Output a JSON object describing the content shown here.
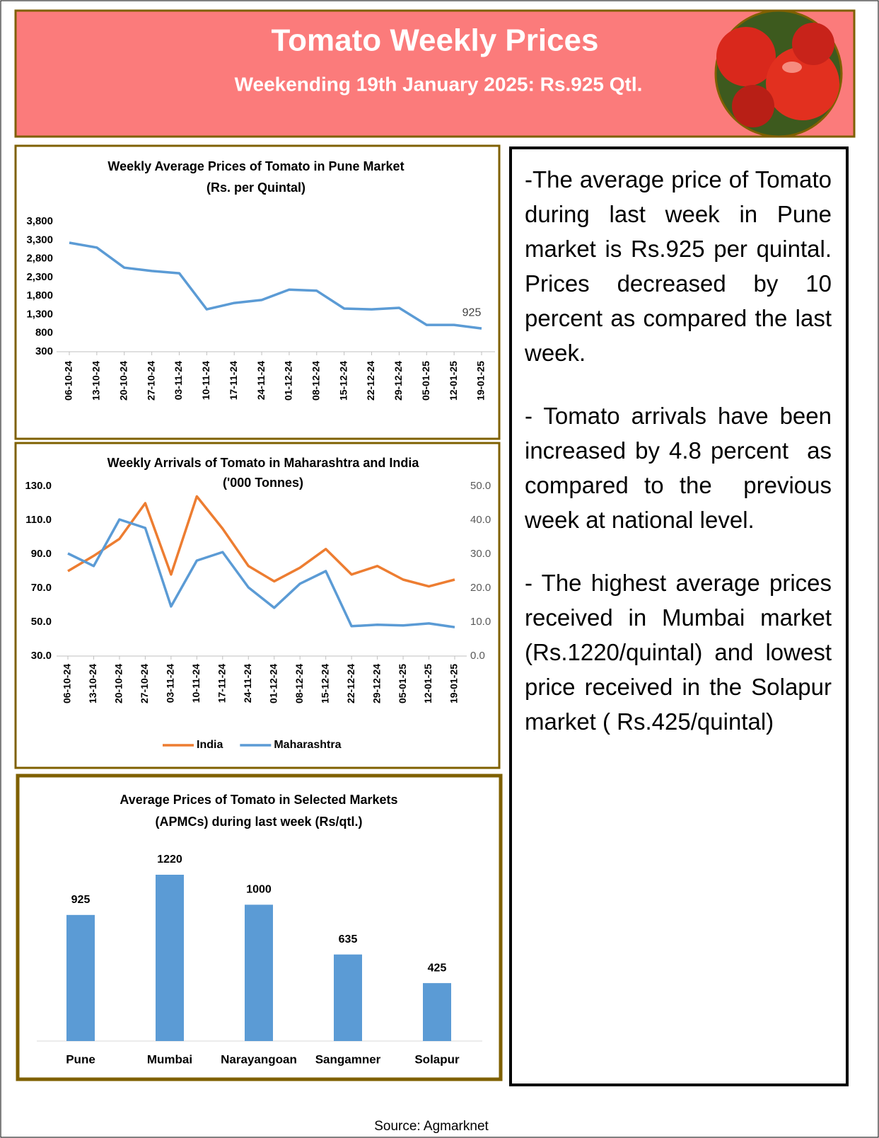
{
  "header": {
    "title": "Tomato Weekly Prices",
    "subtitle": "Weekending  19th January 2025: Rs.925 Qtl."
  },
  "chart_data": [
    {
      "type": "line",
      "title": "Weekly Average Prices of Tomato in Pune Market",
      "subtitle": "(Rs. per Quintal)",
      "categories": [
        "06-10-24",
        "13-10-24",
        "20-10-24",
        "27-10-24",
        "03-11-24",
        "10-11-24",
        "17-11-24",
        "24-11-24",
        "01-12-24",
        "08-12-24",
        "15-12-24",
        "22-12-24",
        "29-12-24",
        "05-01-25",
        "12-01-25",
        "19-01-25"
      ],
      "values": [
        3230,
        3100,
        2560,
        2470,
        2410,
        1440,
        1610,
        1690,
        1970,
        1940,
        1460,
        1440,
        1480,
        1020,
        1020,
        925
      ],
      "color": "#5b9bd5",
      "ylim": [
        300,
        3800
      ],
      "yticks": [
        300,
        800,
        {
          "value": 1300,
          "label": "1,300"
        },
        {
          "value": 1800,
          "label": "1,800"
        },
        {
          "value": 2300,
          "label": "2,300"
        },
        {
          "value": 2800,
          "label": "2,800"
        },
        {
          "value": 3300,
          "label": "3,300"
        },
        {
          "value": 3800,
          "label": "3,800"
        }
      ]
    },
    {
      "type": "line",
      "title": "Weekly Arrivals of Tomato in Maharashtra and India",
      "subtitle": "('000 Tonnes)",
      "categories": [
        "06-10-24",
        "13-10-24",
        "20-10-24",
        "27-10-24",
        "03-11-24",
        "10-11-24",
        "17-11-24",
        "24-11-24",
        "01-12-24",
        "08-12-24",
        "15-12-24",
        "22-12-24",
        "29-12-24",
        "05-01-25",
        "12-01-25",
        "19-01-25"
      ],
      "series": [
        {
          "name": "India",
          "color": "#ed7d31",
          "values": [
            80,
            89,
            99,
            120,
            78,
            124,
            105,
            83,
            74,
            82,
            93,
            78,
            83,
            75,
            71,
            75
          ]
        },
        {
          "name": "Maharashtra",
          "color": "#5b9bd5",
          "axis": "y2",
          "values": [
            30.2,
            26.5,
            40.2,
            37.7,
            14.6,
            28.1,
            30.6,
            20.2,
            14.2,
            21.3,
            25,
            8.8,
            9.2,
            9,
            9.6,
            8.5
          ]
        }
      ],
      "ylim": [
        30,
        130
      ],
      "yticks": [
        {
          "value": 30,
          "label": "30.0"
        },
        {
          "value": 50,
          "label": "50.0"
        },
        {
          "value": 70,
          "label": "70.0"
        },
        {
          "value": 90,
          "label": "90.0"
        },
        {
          "value": 110,
          "label": "110.0"
        },
        {
          "value": 130,
          "label": "130.0"
        }
      ],
      "y2lim": [
        0,
        50
      ],
      "y2ticks": [
        {
          "value": 0,
          "label": "0.0"
        },
        {
          "value": 10,
          "label": "10.0"
        },
        {
          "value": 20,
          "label": "20.0"
        },
        {
          "value": 30,
          "label": "30.0"
        },
        {
          "value": 40,
          "label": "40.0"
        },
        {
          "value": 50,
          "label": "50.0"
        }
      ],
      "legend": "bottom"
    },
    {
      "type": "bar",
      "title": "Average Prices of Tomato in Selected Markets",
      "subtitle": "(APMCs) during last week (Rs/qtl.)",
      "categories": [
        "Pune",
        "Mumbai",
        "Narayangoan",
        "Sangamner",
        "Solapur"
      ],
      "values": [
        925,
        1220,
        1000,
        635,
        425
      ],
      "color": "#5b9bd5"
    }
  ],
  "notes": [
    "-The average price of Tomato during last week in Pune market is Rs.925 per quintal. Prices decreased by 10 percent as compared the last week.",
    "- Tomato arrivals have been increased by 4.8 percent  as compared to the  previous week at national level.",
    "- The highest average prices received in Mumbai market (Rs.1220/quintal) and lowest price received in the Solapur market ( Rs.425/quintal)"
  ],
  "source": "Source: Agmarknet"
}
